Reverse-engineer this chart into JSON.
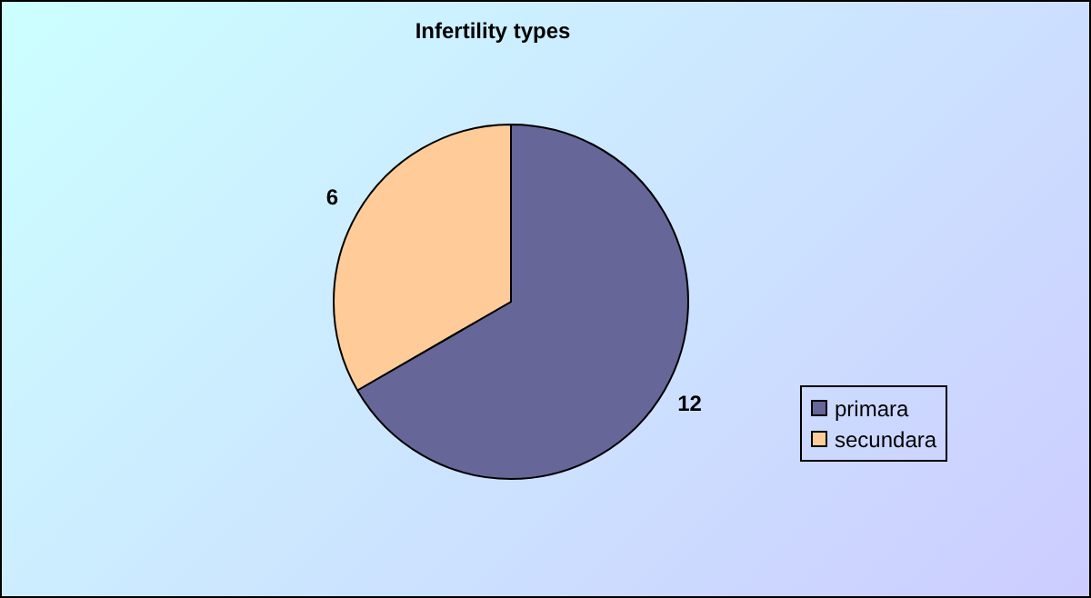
{
  "chart_data": {
    "type": "pie",
    "title": "Infertility types",
    "categories": [
      "primara",
      "secundara"
    ],
    "values": [
      12,
      6
    ],
    "colors": [
      "#666699",
      "#ffcc99"
    ],
    "data_labels": true,
    "legend": "right"
  }
}
